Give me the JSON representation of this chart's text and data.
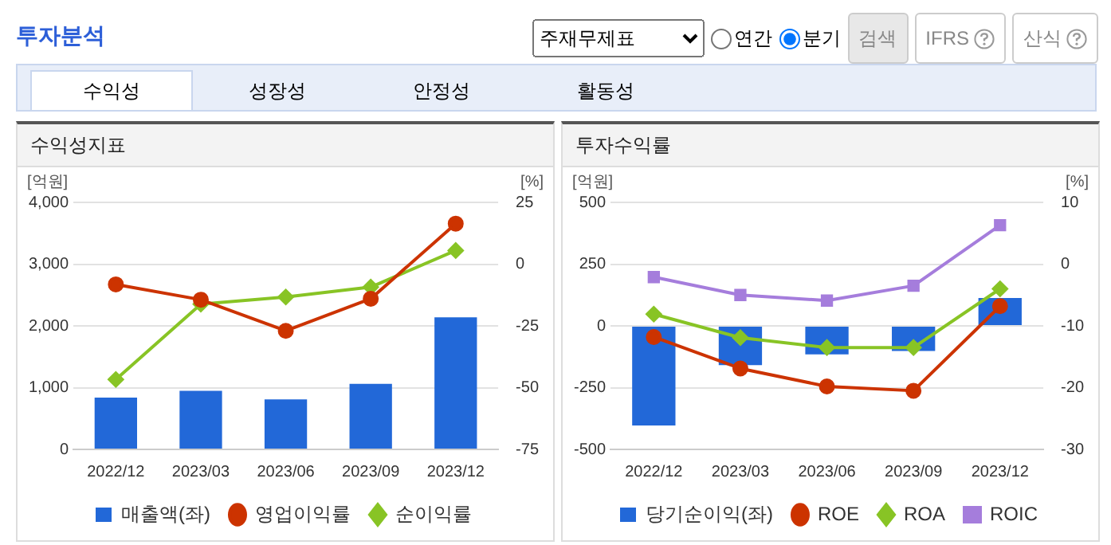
{
  "chart_data": [
    {
      "type": "other",
      "title": "투자분석",
      "annotations": [
        "주재무제표",
        "연간",
        "분기",
        "검색",
        "IFRS",
        "산식",
        "수익성",
        "성장성",
        "안정성",
        "활동성"
      ]
    },
    {
      "type": "bar",
      "title": "수익성지표",
      "categories": [
        "2022/12",
        "2023/03",
        "2023/06",
        "2023/09",
        "2023/12"
      ],
      "ylabel": "[억원]",
      "y2label": "[%]",
      "series": [
        {
          "name": "매출액(좌)",
          "type": "bar",
          "color": "#2268d8",
          "values": [
            840,
            950,
            810,
            1060,
            2140
          ]
        },
        {
          "name": "영업이익률",
          "type": "line",
          "axis": "y2",
          "marker": "circle",
          "color": "#cc3300",
          "values": [
            -8.2,
            -14.4,
            -27,
            -14,
            16.4
          ]
        },
        {
          "name": "순이익률",
          "type": "line",
          "axis": "y2",
          "marker": "diamond",
          "color": "#88c425",
          "values": [
            -46.7,
            -16.2,
            -13.3,
            -9.3,
            5.5
          ]
        }
      ],
      "ylim": [
        0,
        4000
      ],
      "yticks": [
        0,
        {
          "value": 1000,
          "label": "1,000"
        },
        {
          "value": 2000,
          "label": "2,000"
        },
        {
          "value": 3000,
          "label": "3,000"
        },
        {
          "value": 4000,
          "label": "4,000"
        }
      ],
      "y2lim": [
        -75,
        25
      ],
      "y2ticks": [
        -75,
        -50,
        -25,
        0,
        25
      ],
      "grid": "y",
      "legend": "bottom",
      "line_style": "solid"
    },
    {
      "type": "bar",
      "title": "투자수익률",
      "categories": [
        "2022/12",
        "2023/03",
        "2023/06",
        "2023/09",
        "2023/12"
      ],
      "ylabel": "[억원]",
      "y2label": "[%]",
      "series": [
        {
          "name": "당기순이익(좌)",
          "type": "bar",
          "color": "#2268d8",
          "values": [
            -403,
            -159,
            -115,
            -102,
            113
          ]
        },
        {
          "name": "ROE",
          "type": "line",
          "axis": "y2",
          "marker": "circle",
          "color": "#cc3300",
          "values": [
            -11.8,
            -16.9,
            -19.8,
            -20.5,
            -6.8
          ]
        },
        {
          "name": "ROA",
          "type": "line",
          "axis": "y2",
          "marker": "diamond",
          "color": "#88c425",
          "values": [
            -8.1,
            -11.9,
            -13.5,
            -13.5,
            -4.0
          ]
        },
        {
          "name": "ROIC",
          "type": "line",
          "axis": "y2",
          "marker": "square",
          "color": "#a57ddc",
          "values": [
            -2.1,
            -5.0,
            -5.9,
            -3.5,
            6.3
          ]
        }
      ],
      "ylim": [
        -500,
        500
      ],
      "yticks": [
        -500,
        -250,
        0,
        250,
        500
      ],
      "y2lim": [
        -30,
        10
      ],
      "y2ticks": [
        -30,
        -20,
        -10,
        0,
        10
      ],
      "grid": "y",
      "legend": "bottom",
      "line_style": "solid"
    }
  ]
}
